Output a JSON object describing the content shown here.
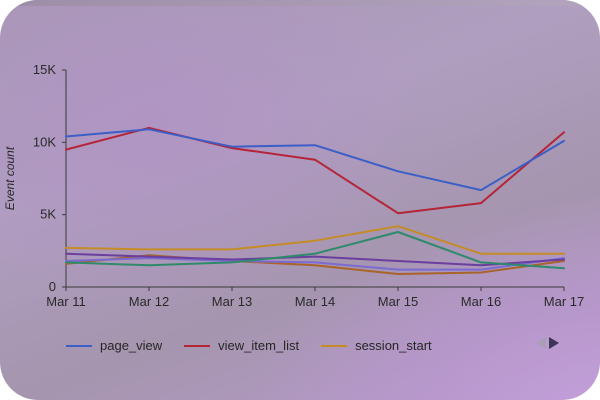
{
  "chart_data": {
    "type": "line",
    "title": "",
    "xlabel": "",
    "ylabel": "Event count",
    "categories": [
      "Mar 11",
      "Mar 12",
      "Mar 13",
      "Mar 14",
      "Mar 15",
      "Mar 16",
      "Mar 17"
    ],
    "ylim": [
      0,
      15000
    ],
    "yticks": [
      {
        "value": 0,
        "label": "0"
      },
      {
        "value": 5000,
        "label": "5K"
      },
      {
        "value": 10000,
        "label": "10K"
      },
      {
        "value": 15000,
        "label": "15K"
      }
    ],
    "grid": false,
    "legend_position": "bottom-left",
    "series": [
      {
        "name": "page_view",
        "color": "#3b5fc7",
        "values": [
          10400,
          10900,
          9700,
          9800,
          8000,
          6700,
          10100
        ]
      },
      {
        "name": "view_item_list",
        "color": "#b52538",
        "values": [
          9500,
          11000,
          9600,
          8800,
          5100,
          5800,
          10700
        ]
      },
      {
        "name": "session_start",
        "color": "#c58c26",
        "values": [
          2700,
          2600,
          2600,
          3200,
          4200,
          2300,
          2300
        ]
      },
      {
        "color": "#2f8a6b",
        "values": [
          1700,
          1500,
          1700,
          2300,
          3800,
          1700,
          1300
        ]
      },
      {
        "color": "#6a3f9e",
        "values": [
          2300,
          2100,
          1900,
          2100,
          1800,
          1500,
          1900
        ]
      },
      {
        "color": "#7b6ad0",
        "values": [
          1800,
          2000,
          1800,
          1700,
          1200,
          1200,
          2000
        ]
      },
      {
        "color": "#a8642a",
        "values": [
          1600,
          2200,
          1800,
          1500,
          900,
          1000,
          1800
        ]
      }
    ]
  },
  "legend": {
    "items": [
      "page_view",
      "view_item_list",
      "session_start"
    ]
  },
  "pager": {
    "prev_icon": "chevron-left-icon",
    "next_icon": "chevron-right-icon"
  }
}
